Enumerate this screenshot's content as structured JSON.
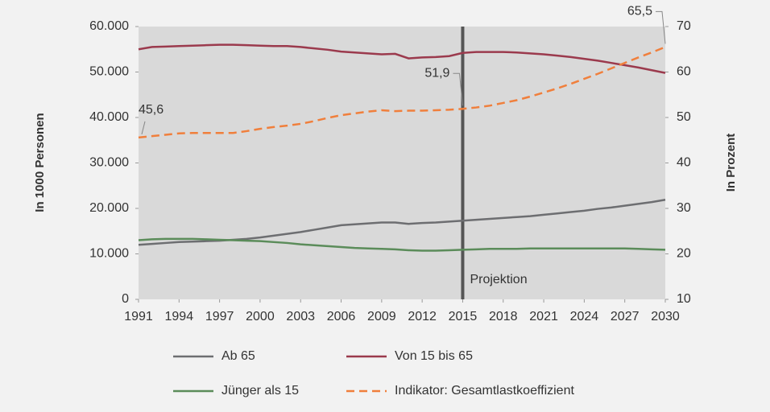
{
  "chart_data": {
    "type": "line",
    "ylabel": "In 1000 Personen",
    "y2label": "In Prozent",
    "x": [
      1991,
      1992,
      1993,
      1994,
      1995,
      1996,
      1997,
      1998,
      1999,
      2000,
      2001,
      2002,
      2003,
      2004,
      2005,
      2006,
      2007,
      2008,
      2009,
      2010,
      2011,
      2012,
      2013,
      2014,
      2015,
      2016,
      2017,
      2018,
      2019,
      2020,
      2021,
      2022,
      2023,
      2024,
      2025,
      2026,
      2027,
      2028,
      2029,
      2030
    ],
    "xlim": [
      1991,
      2030
    ],
    "xticks": [
      1991,
      1994,
      1997,
      2000,
      2003,
      2006,
      2009,
      2012,
      2015,
      2018,
      2021,
      2024,
      2027,
      2030
    ],
    "ylim": [
      0,
      60000
    ],
    "yticks": [
      0,
      {
        "value": 10000,
        "label": "10.000"
      },
      {
        "value": 20000,
        "label": "20.000"
      },
      {
        "value": 30000,
        "label": "30.000"
      },
      {
        "value": 40000,
        "label": "40.000"
      },
      {
        "value": 50000,
        "label": "50.000"
      },
      {
        "value": 60000,
        "label": "60.000"
      }
    ],
    "y2lim": [
      10,
      70
    ],
    "y2ticks": [
      10,
      20,
      30,
      40,
      50,
      60,
      70
    ],
    "series": [
      {
        "name": "Ab 65",
        "color": "#6d6e71",
        "values": [
          12000,
          12200,
          12400,
          12600,
          12700,
          12800,
          12900,
          13100,
          13300,
          13600,
          14000,
          14400,
          14800,
          15300,
          15800,
          16300,
          16500,
          16700,
          16900,
          16900,
          16600,
          16800,
          16900,
          17100,
          17300,
          17500,
          17700,
          17900,
          18100,
          18300,
          18600,
          18900,
          19200,
          19500,
          19900,
          20200,
          20600,
          21000,
          21400,
          21900
        ]
      },
      {
        "name": "Von 15 bis 65",
        "color": "#9b3a4d",
        "values": [
          55000,
          55500,
          55600,
          55700,
          55800,
          55900,
          56000,
          56000,
          55900,
          55800,
          55700,
          55700,
          55500,
          55200,
          54900,
          54500,
          54300,
          54100,
          53900,
          54000,
          53000,
          53200,
          53300,
          53500,
          54200,
          54400,
          54400,
          54400,
          54300,
          54100,
          53900,
          53600,
          53300,
          52900,
          52500,
          52000,
          51500,
          51000,
          50400,
          49800
        ]
      },
      {
        "name": "Jünger als 15",
        "color": "#5b8c5a",
        "values": [
          13000,
          13200,
          13300,
          13300,
          13300,
          13200,
          13100,
          13000,
          12900,
          12800,
          12600,
          12400,
          12100,
          11900,
          11700,
          11500,
          11300,
          11200,
          11100,
          11000,
          10800,
          10700,
          10700,
          10800,
          10900,
          11000,
          11100,
          11100,
          11100,
          11200,
          11200,
          11200,
          11200,
          11200,
          11200,
          11200,
          11200,
          11100,
          11000,
          10900
        ]
      },
      {
        "name": "Indikator: Gesamtlastkoeffizient",
        "color": "#f07f3c",
        "dashed": true,
        "axis": "y2",
        "values": [
          45.6,
          45.9,
          46.2,
          46.5,
          46.6,
          46.6,
          46.6,
          46.6,
          47.0,
          47.5,
          47.9,
          48.2,
          48.6,
          49.2,
          49.9,
          50.5,
          50.9,
          51.3,
          51.6,
          51.4,
          51.5,
          51.5,
          51.6,
          51.7,
          51.9,
          52.2,
          52.6,
          53.2,
          53.8,
          54.6,
          55.5,
          56.4,
          57.4,
          58.5,
          59.6,
          60.8,
          62.0,
          63.2,
          64.3,
          65.5
        ],
        "value_labels": [
          "45,6",
          null,
          null,
          null,
          null,
          null,
          null,
          null,
          null,
          null,
          null,
          null,
          null,
          null,
          null,
          null,
          null,
          null,
          null,
          null,
          null,
          null,
          null,
          null,
          "51,9",
          null,
          null,
          null,
          null,
          null,
          null,
          null,
          null,
          null,
          null,
          null,
          null,
          null,
          null,
          "65,5"
        ]
      }
    ],
    "annotations": [
      {
        "text": "Projektion",
        "x": 2015
      }
    ]
  }
}
